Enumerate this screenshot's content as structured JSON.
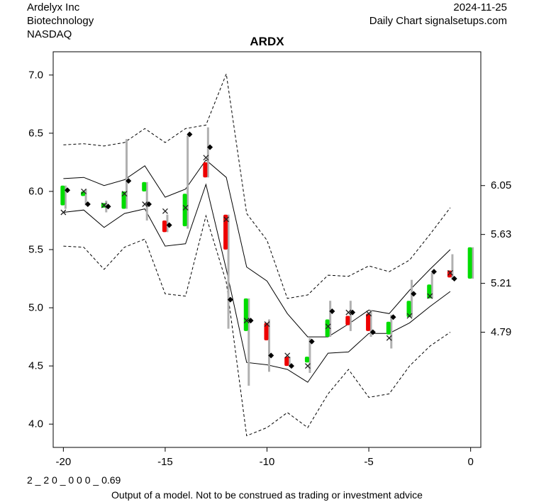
{
  "header": {
    "company": "Ardelyx Inc",
    "sector": "Biotechnology",
    "exchange": "NASDAQ",
    "date": "2024-11-25",
    "source": "Daily Chart signalsetups.com"
  },
  "footer": {
    "model_code": "2 _ 2 0 _ 0 0 0 _ 0.69",
    "disclaimer": "Output of a model. Not to be construed as trading or investment advice"
  },
  "colors": {
    "up": "#00dd00",
    "down": "#ee0000",
    "range": "#b0b0b0",
    "band": "#000000"
  },
  "chart_data": {
    "type": "candlestick",
    "title": "ARDX",
    "xlim": [
      -20.5,
      0.5
    ],
    "ylim": [
      3.8,
      7.2
    ],
    "x_ticks": [
      -20,
      -15,
      -10,
      -5,
      0
    ],
    "y_ticks_left": [
      4.0,
      4.5,
      5.0,
      5.5,
      6.0,
      6.5,
      7.0
    ],
    "y_ticks_right": [
      4.79,
      5.21,
      5.63,
      6.05
    ],
    "candles": [
      {
        "x": -20,
        "open": 5.88,
        "close": 6.05,
        "high": 6.05,
        "low": 5.85,
        "color": "up"
      },
      {
        "x": -19,
        "open": 5.96,
        "close": 6.0,
        "high": 6.02,
        "low": 5.88,
        "color": "up"
      },
      {
        "x": -18,
        "open": 5.86,
        "close": 5.9,
        "high": 5.92,
        "low": 5.82,
        "color": "up"
      },
      {
        "x": -17,
        "open": 5.85,
        "close": 6.0,
        "high": 6.45,
        "low": 5.85,
        "color": "up"
      },
      {
        "x": -16,
        "open": 6.0,
        "close": 6.08,
        "high": 6.08,
        "low": 5.75,
        "color": "up"
      },
      {
        "x": -15,
        "open": 5.75,
        "close": 5.65,
        "high": 5.8,
        "low": 5.65,
        "color": "down"
      },
      {
        "x": -14,
        "open": 5.7,
        "close": 5.98,
        "high": 6.48,
        "low": 5.68,
        "color": "up"
      },
      {
        "x": -13,
        "open": 6.25,
        "close": 6.12,
        "high": 6.55,
        "low": 6.12,
        "color": "down"
      },
      {
        "x": -12,
        "open": 5.8,
        "close": 5.5,
        "high": 5.8,
        "low": 4.82,
        "color": "down"
      },
      {
        "x": -11,
        "open": 4.8,
        "close": 5.08,
        "high": 5.08,
        "low": 4.33,
        "color": "up"
      },
      {
        "x": -10,
        "open": 4.87,
        "close": 4.72,
        "high": 4.9,
        "low": 4.45,
        "color": "down"
      },
      {
        "x": -9,
        "open": 4.58,
        "close": 4.5,
        "high": 4.58,
        "low": 4.5,
        "color": "down"
      },
      {
        "x": -8,
        "open": 4.53,
        "close": 4.58,
        "high": 4.74,
        "low": 4.44,
        "color": "up"
      },
      {
        "x": -7,
        "open": 4.75,
        "close": 4.9,
        "high": 5.06,
        "low": 4.75,
        "color": "up"
      },
      {
        "x": -6,
        "open": 4.93,
        "close": 4.85,
        "high": 5.06,
        "low": 4.8,
        "color": "down"
      },
      {
        "x": -5,
        "open": 4.95,
        "close": 4.8,
        "high": 4.98,
        "low": 4.75,
        "color": "down"
      },
      {
        "x": -4,
        "open": 4.77,
        "close": 4.88,
        "high": 4.94,
        "low": 4.65,
        "color": "up"
      },
      {
        "x": -3,
        "open": 4.92,
        "close": 5.06,
        "high": 5.24,
        "low": 4.92,
        "color": "up"
      },
      {
        "x": -2,
        "open": 5.08,
        "close": 5.2,
        "high": 5.3,
        "low": 5.08,
        "color": "up"
      },
      {
        "x": -1,
        "open": 5.32,
        "close": 5.26,
        "high": 5.46,
        "low": 5.24,
        "color": "down"
      },
      {
        "x": 0,
        "open": 5.25,
        "close": 5.52,
        "high": 5.52,
        "low": 5.25,
        "color": "up"
      }
    ],
    "diamonds": [
      {
        "x": -19.8,
        "y": 6.01
      },
      {
        "x": -18.8,
        "y": 5.89
      },
      {
        "x": -17.8,
        "y": 5.87
      },
      {
        "x": -16.8,
        "y": 6.09
      },
      {
        "x": -15.8,
        "y": 5.89
      },
      {
        "x": -14.8,
        "y": 5.71
      },
      {
        "x": -13.8,
        "y": 6.49
      },
      {
        "x": -12.8,
        "y": 6.38
      },
      {
        "x": -11.8,
        "y": 5.07
      },
      {
        "x": -10.8,
        "y": 4.89
      },
      {
        "x": -9.8,
        "y": 4.59
      },
      {
        "x": -8.8,
        "y": 4.5
      },
      {
        "x": -7.8,
        "y": 4.71
      },
      {
        "x": -6.8,
        "y": 4.97
      },
      {
        "x": -5.8,
        "y": 4.96
      },
      {
        "x": -4.8,
        "y": 4.79
      },
      {
        "x": -3.8,
        "y": 4.92
      },
      {
        "x": -2.8,
        "y": 5.12
      },
      {
        "x": -1.8,
        "y": 5.31
      },
      {
        "x": -0.8,
        "y": 5.25
      }
    ],
    "crosses": [
      {
        "x": -20,
        "y": 5.82
      },
      {
        "x": -19,
        "y": 6.0
      },
      {
        "x": -18,
        "y": 5.88
      },
      {
        "x": -17,
        "y": 5.98
      },
      {
        "x": -16,
        "y": 5.89
      },
      {
        "x": -15,
        "y": 5.83
      },
      {
        "x": -14,
        "y": 5.86
      },
      {
        "x": -13,
        "y": 6.29
      },
      {
        "x": -12,
        "y": 5.76
      },
      {
        "x": -11,
        "y": 4.89
      },
      {
        "x": -10,
        "y": 4.86
      },
      {
        "x": -9,
        "y": 4.59
      },
      {
        "x": -8,
        "y": 4.5
      },
      {
        "x": -7,
        "y": 4.84
      },
      {
        "x": -6,
        "y": 4.96
      },
      {
        "x": -5,
        "y": 4.95
      },
      {
        "x": -4,
        "y": 4.74
      },
      {
        "x": -3,
        "y": 4.93
      },
      {
        "x": -2,
        "y": 5.1
      },
      {
        "x": -1,
        "y": 5.3
      }
    ],
    "bands": {
      "x": [
        -20,
        -19,
        -18,
        -17,
        -16,
        -15,
        -14,
        -13,
        -12,
        -11,
        -10,
        -9,
        -8,
        -7,
        -6,
        -5,
        -4,
        -3,
        -2,
        -1
      ],
      "inner_upper": [
        6.11,
        6.12,
        6.05,
        6.1,
        6.22,
        5.95,
        6.02,
        6.27,
        6.12,
        5.35,
        5.23,
        4.95,
        4.75,
        4.75,
        4.86,
        4.98,
        4.95,
        5.15,
        5.33,
        5.5
      ],
      "inner_lower": [
        5.82,
        5.84,
        5.69,
        5.81,
        5.85,
        5.53,
        5.55,
        6.06,
        5.33,
        4.53,
        4.51,
        4.47,
        4.36,
        4.61,
        4.62,
        4.78,
        4.78,
        4.87,
        5.01,
        5.14
      ],
      "outer_upper": [
        6.4,
        6.41,
        6.39,
        6.42,
        6.54,
        6.42,
        6.54,
        6.57,
        7.01,
        5.81,
        5.58,
        5.08,
        5.11,
        5.28,
        5.27,
        5.36,
        5.31,
        5.41,
        5.63,
        5.86
      ],
      "outer_lower": [
        5.53,
        5.52,
        5.33,
        5.52,
        5.59,
        5.12,
        5.1,
        5.79,
        5.22,
        3.9,
        3.97,
        4.1,
        3.97,
        4.26,
        4.47,
        4.23,
        4.26,
        4.5,
        4.67,
        4.79
      ]
    }
  }
}
